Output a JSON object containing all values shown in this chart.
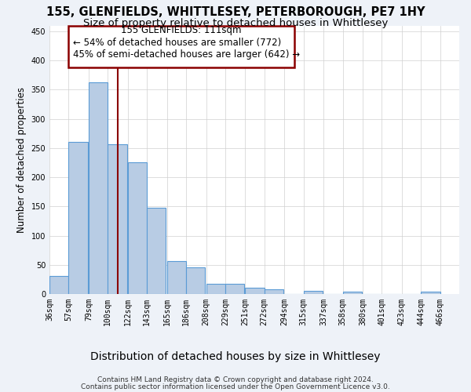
{
  "title": "155, GLENFIELDS, WHITTLESEY, PETERBOROUGH, PE7 1HY",
  "subtitle": "Size of property relative to detached houses in Whittlesey",
  "xlabel": "Distribution of detached houses by size in Whittlesey",
  "ylabel": "Number of detached properties",
  "footer_line1": "Contains HM Land Registry data © Crown copyright and database right 2024.",
  "footer_line2": "Contains public sector information licensed under the Open Government Licence v3.0.",
  "annotation_line1": "155 GLENFIELDS: 111sqm",
  "annotation_line2": "← 54% of detached houses are smaller (772)",
  "annotation_line3": "45% of semi-detached houses are larger (642) →",
  "bar_color": "#b8cce4",
  "bar_edge_color": "#5b9bd5",
  "vline_color": "#8b0000",
  "vline_x": 111,
  "bins_left": [
    36,
    57,
    79,
    100,
    122,
    143,
    165,
    186,
    208,
    229,
    251,
    272,
    294,
    315,
    337,
    358,
    380,
    401,
    423,
    444
  ],
  "bin_width": 21,
  "bar_heights": [
    31,
    260,
    362,
    256,
    225,
    148,
    57,
    45,
    18,
    18,
    11,
    8,
    0,
    6,
    0,
    4,
    0,
    0,
    0,
    4
  ],
  "tick_labels": [
    "36sqm",
    "57sqm",
    "79sqm",
    "100sqm",
    "122sqm",
    "143sqm",
    "165sqm",
    "186sqm",
    "208sqm",
    "229sqm",
    "251sqm",
    "272sqm",
    "294sqm",
    "315sqm",
    "337sqm",
    "358sqm",
    "380sqm",
    "401sqm",
    "423sqm",
    "444sqm",
    "466sqm"
  ],
  "ylim": [
    0,
    460
  ],
  "yticks": [
    0,
    50,
    100,
    150,
    200,
    250,
    300,
    350,
    400,
    450
  ],
  "background_color": "#eef2f8",
  "plot_background_color": "#ffffff",
  "grid_color": "#d0d0d0",
  "title_fontsize": 10.5,
  "subtitle_fontsize": 9.5,
  "xlabel_fontsize": 10,
  "ylabel_fontsize": 8.5,
  "tick_fontsize": 7,
  "footer_fontsize": 6.5,
  "annotation_fontsize": 8.5
}
